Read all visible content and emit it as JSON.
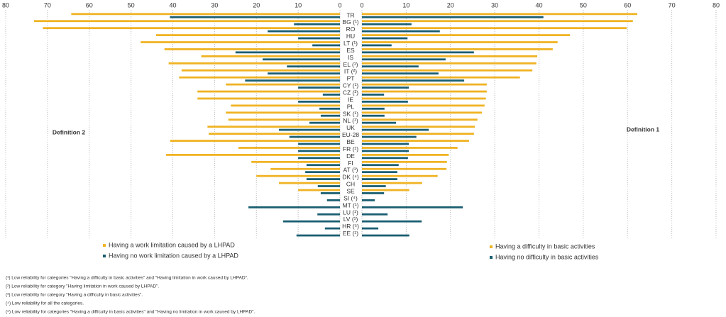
{
  "chart_data": {
    "type": "butterfly",
    "categories": [
      "TR",
      "BG (¹)",
      "RO",
      "HU",
      "LT (¹)",
      "ES",
      "IS",
      "EL (¹)",
      "IT (²)",
      "PT",
      "CY (¹)",
      "CZ (³)",
      "IE",
      "PL",
      "SK (¹)",
      "NL (¹)",
      "UK",
      "EU-28",
      "BE",
      "FR (¹)",
      "DE",
      "FI",
      "AT (¹)",
      "DK (⁴)",
      "CH",
      "SE",
      "SI (⁴)",
      "MT (¹)",
      "LU (¹)",
      "LV (¹)",
      "HR (⁵)",
      "EE (¹)"
    ],
    "panels": [
      {
        "label": "Definition 2",
        "xlim": [
          80,
          0
        ],
        "xticks": [
          80,
          70,
          60,
          50,
          40,
          30,
          20,
          10,
          0
        ],
        "grid": true,
        "series": [
          {
            "name": "Having a work limitation caused by a LHPAD",
            "color": "#f0b323",
            "values": [
              64.3,
              73.2,
              71.1,
              44,
              47.7,
              42,
              33.2,
              41,
              37.9,
              38.5,
              27.3,
              34.1,
              34.1,
              26.1,
              27.3,
              26.7,
              31.7,
              31.4,
              40.6,
              24.3,
              41.6,
              21.2,
              16.6,
              20,
              14.6,
              10,
              null,
              null,
              null,
              null,
              null,
              null
            ]
          },
          {
            "name": "Having no work limitation caused by a LHPAD",
            "color": "#1a5e72",
            "values": [
              40.7,
              11,
              17.3,
              10,
              6.6,
              25,
              18.5,
              12.7,
              17.3,
              22.7,
              10,
              4.1,
              10,
              4.9,
              4.6,
              7.3,
              14.6,
              12.1,
              10,
              10,
              10,
              8,
              8.3,
              8,
              5.3,
              4.6,
              3.1,
              21.9,
              5.4,
              13.6,
              3.6,
              10.4
            ]
          }
        ]
      },
      {
        "label": "Definition 1",
        "xlim": [
          0,
          80
        ],
        "xticks": [
          0,
          10,
          20,
          30,
          40,
          50,
          60,
          70,
          80
        ],
        "grid": true,
        "series": [
          {
            "name": "Having a difficulty in basic activities",
            "color": "#f0b323",
            "values": [
              62.2,
              61.2,
              59.8,
              47,
              44.2,
              43.1,
              39.6,
              39.4,
              38.5,
              35.7,
              28.2,
              28.2,
              28,
              27.7,
              27.1,
              26.1,
              25.5,
              25.3,
              24.2,
              21.6,
              19.6,
              19.2,
              19.1,
              17.1,
              13.6,
              10.7,
              null,
              null,
              null,
              null,
              null,
              null
            ]
          },
          {
            "name": "Having no difficulty in basic activities",
            "color": "#1a5e72",
            "values": [
              41,
              11.2,
              17.6,
              10.3,
              6.7,
              25.3,
              18.9,
              12.8,
              17.3,
              23.1,
              10.6,
              5,
              10.4,
              5.1,
              5.1,
              7.7,
              15.1,
              12.3,
              10.6,
              10.6,
              10.4,
              8.3,
              8,
              8,
              5.4,
              5,
              2.9,
              22.8,
              5.8,
              13.5,
              3.7,
              10.7
            ]
          }
        ]
      }
    ],
    "notes": [
      "(¹) Low reliability for categories \"Having a difficulty in basic activities\" and \"Having limitation in work caused by LHPAD\".",
      "(²) Low reliability for category \"Having limitation in work caused by LHPAD\".",
      "(³) Low reliability for category \"Having a difficulty in basic activities\".",
      "(⁴) Low reliability for all the categories.",
      "(⁵) Low reliability for categories \"Having a difficulty in basic activities\" and \"Having no limitation in work caused by LHPAD\"."
    ]
  }
}
